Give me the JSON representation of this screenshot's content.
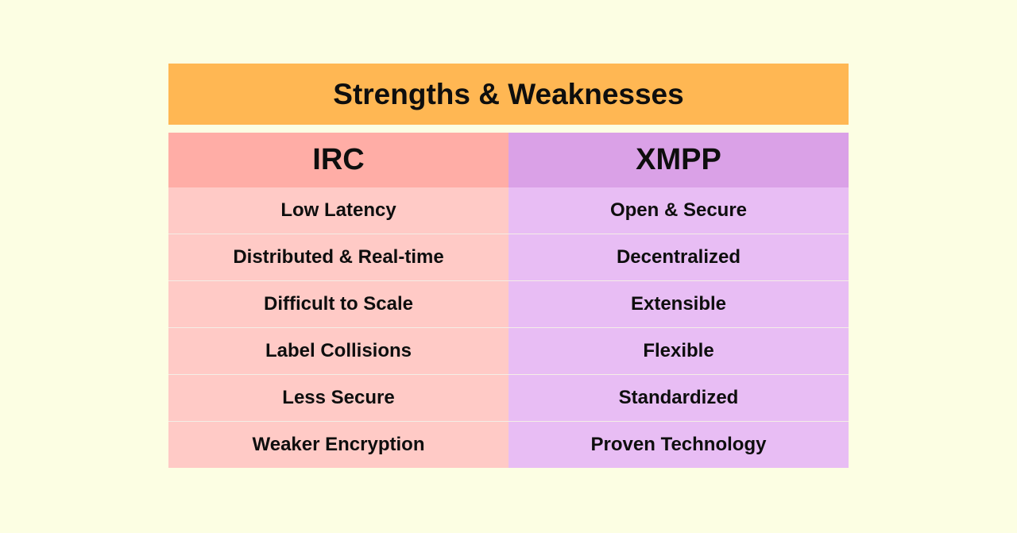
{
  "title": "Strengths & Weaknesses",
  "columns": {
    "left": "IRC",
    "right": "XMPP"
  },
  "rows": [
    {
      "left": "Low Latency",
      "right": "Open & Secure"
    },
    {
      "left": "Distributed & Real-time",
      "right": "Decentralized"
    },
    {
      "left": "Difficult to Scale",
      "right": "Extensible"
    },
    {
      "left": "Label Collisions",
      "right": "Flexible"
    },
    {
      "left": "Less Secure",
      "right": "Standardized"
    },
    {
      "left": "Weaker Encryption",
      "right": "Proven Technology"
    }
  ],
  "colors": {
    "background": "#fcfee3",
    "title_bar": "#ffb753",
    "left_header": "#ffada6",
    "right_header": "#daa1e7",
    "left_cell": "#ffcac6",
    "right_cell": "#e8bdf4"
  }
}
